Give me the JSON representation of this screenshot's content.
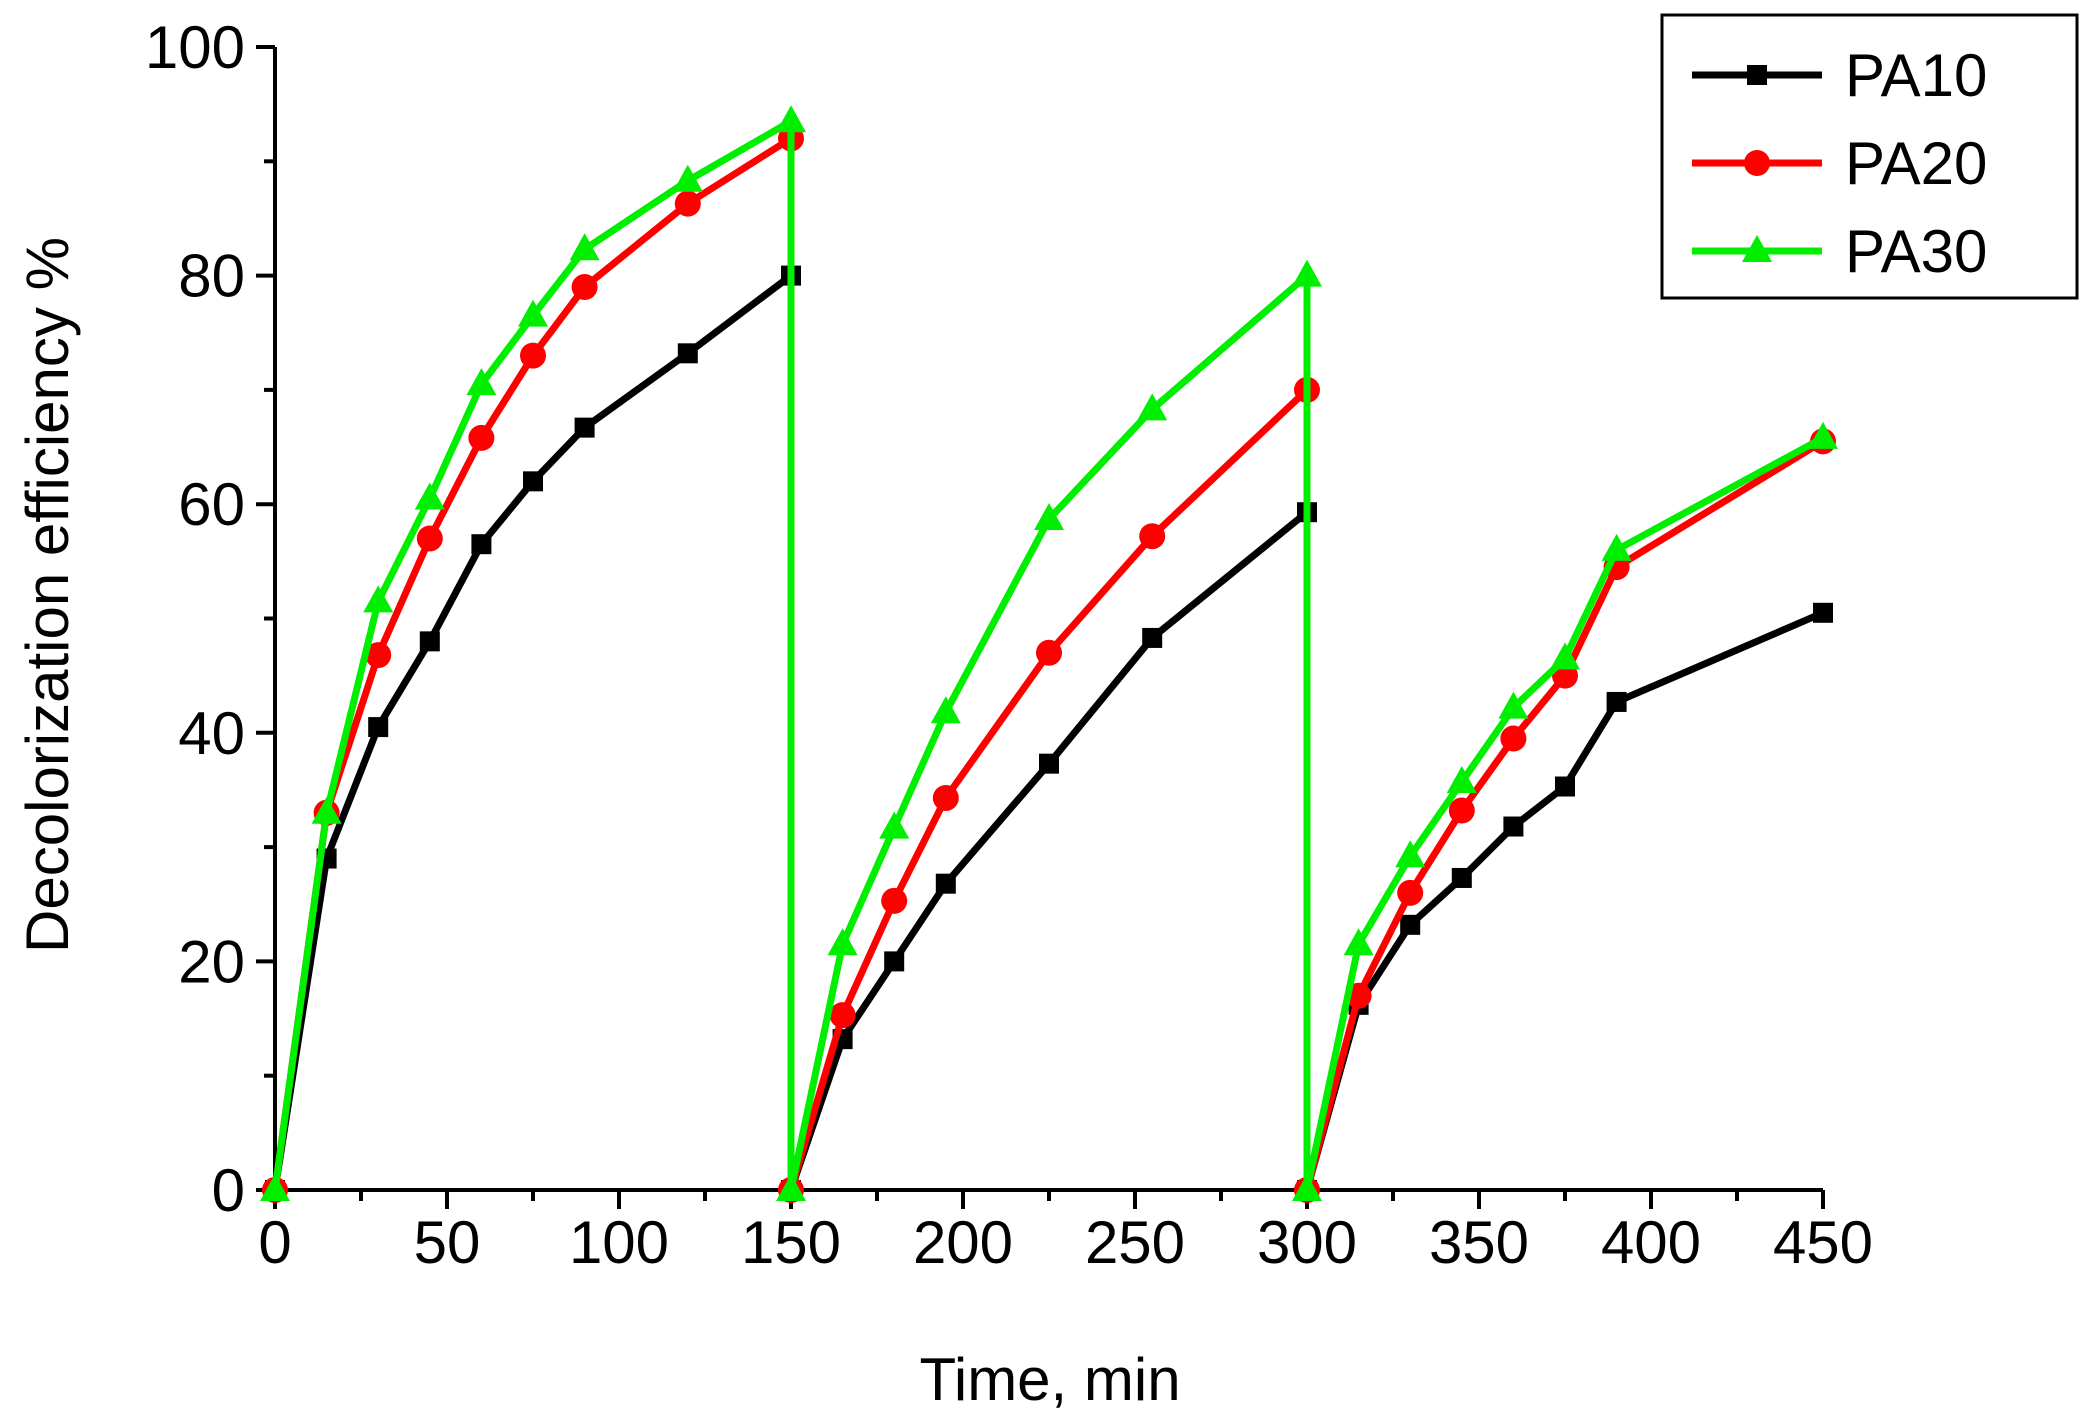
{
  "chart_data": {
    "type": "line",
    "title": "",
    "xlabel": "Time, min",
    "ylabel": "Decolorization efficiency %",
    "xlim": [
      0,
      450
    ],
    "ylim": [
      0,
      100
    ],
    "xticks": [
      0,
      50,
      100,
      150,
      200,
      250,
      300,
      350,
      400,
      450
    ],
    "yticks": [
      0,
      20,
      40,
      60,
      80,
      100
    ],
    "xtick_labels": [
      "0",
      "50",
      "100",
      "150",
      "200",
      "250",
      "300",
      "350",
      "400",
      "450"
    ],
    "ytick_labels": [
      "0",
      "20",
      "40",
      "60",
      "80",
      "100"
    ],
    "grid": false,
    "legend_position": "top-right",
    "series": [
      {
        "name": "PA10",
        "color": "#000000",
        "marker": "square",
        "x": [
          0,
          15,
          30,
          45,
          60,
          75,
          90,
          120,
          150,
          150,
          165,
          180,
          195,
          225,
          255,
          300,
          300,
          315,
          330,
          345,
          360,
          375,
          390,
          450
        ],
        "y": [
          0,
          29,
          40.5,
          48,
          56.5,
          62,
          66.7,
          73.2,
          80,
          0,
          13.2,
          20,
          26.8,
          37.3,
          48.3,
          59.3,
          0,
          16.2,
          23.2,
          27.3,
          31.8,
          35.3,
          42.7,
          50.5
        ]
      },
      {
        "name": "PA20",
        "color": "#ff0000",
        "marker": "circle",
        "x": [
          0,
          15,
          30,
          45,
          60,
          75,
          90,
          120,
          150,
          150,
          165,
          180,
          195,
          225,
          255,
          300,
          300,
          315,
          330,
          345,
          360,
          375,
          390,
          450
        ],
        "y": [
          0,
          33,
          46.8,
          57,
          65.8,
          73,
          79,
          86.3,
          92,
          0,
          15.3,
          25.3,
          34.3,
          47,
          57.2,
          70,
          0,
          17,
          26,
          33.2,
          39.5,
          45,
          54.5,
          65.5
        ]
      },
      {
        "name": "PA30",
        "color": "#00ee00",
        "marker": "triangle",
        "x": [
          0,
          15,
          30,
          45,
          60,
          75,
          90,
          120,
          150,
          150,
          165,
          180,
          195,
          225,
          255,
          300,
          300,
          315,
          330,
          345,
          360,
          375,
          390,
          450
        ],
        "y": [
          0,
          33,
          51.5,
          60.5,
          70.5,
          76.5,
          82.3,
          88.3,
          93.5,
          0,
          21.5,
          31.7,
          41.8,
          58.7,
          68.3,
          80,
          0,
          21.5,
          29.2,
          35.7,
          42.2,
          46.5,
          56,
          65.8
        ]
      }
    ]
  }
}
